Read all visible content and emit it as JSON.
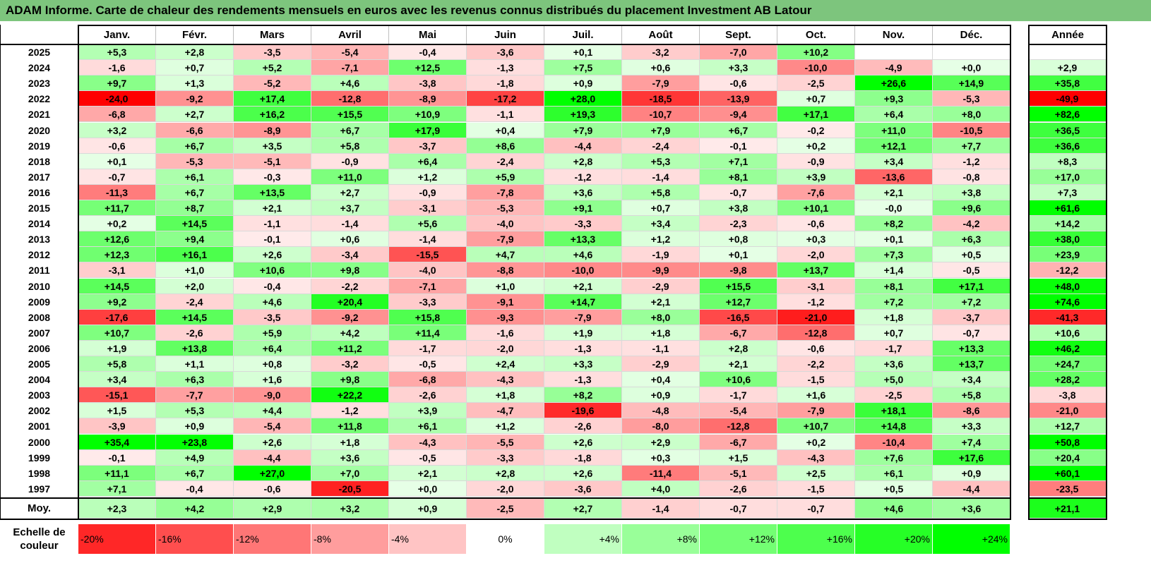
{
  "title": "ADAM Informe. Carte de chaleur des rendements mensuels en euros avec les revenus connus distribués du placement Investment AB Latour",
  "chart_data": {
    "type": "heatmap",
    "months": [
      "Janv.",
      "Févr.",
      "Mars",
      "Avril",
      "Mai",
      "Juin",
      "Juil.",
      "Août",
      "Sept.",
      "Oct.",
      "Nov.",
      "Déc."
    ],
    "year_header": "Année",
    "rows": [
      {
        "year": "2025",
        "values": [
          "+5,3",
          "+2,8",
          "-3,5",
          "-5,4",
          "-0,4",
          "-3,6",
          "+0,1",
          "-3,2",
          "-7,0",
          "+10,2",
          "",
          ""
        ],
        "annual": ""
      },
      {
        "year": "2024",
        "values": [
          "-1,6",
          "+0,7",
          "+5,2",
          "-7,1",
          "+12,5",
          "-1,3",
          "+7,5",
          "+0,6",
          "+3,3",
          "-10,0",
          "-4,9",
          "+0,0"
        ],
        "annual": "+2,9"
      },
      {
        "year": "2023",
        "values": [
          "+9,7",
          "+1,3",
          "-5,2",
          "+4,6",
          "-3,8",
          "-1,8",
          "+0,9",
          "-7,9",
          "-0,6",
          "-2,5",
          "+26,6",
          "+14,9"
        ],
        "annual": "+35,8"
      },
      {
        "year": "2022",
        "values": [
          "-24,0",
          "-9,2",
          "+17,4",
          "-12,8",
          "-8,9",
          "-17,2",
          "+28,0",
          "-18,5",
          "-13,9",
          "+0,7",
          "+9,3",
          "-5,3"
        ],
        "annual": "-49,9"
      },
      {
        "year": "2021",
        "values": [
          "-6,8",
          "+2,7",
          "+16,2",
          "+15,5",
          "+10,9",
          "-1,1",
          "+19,3",
          "-10,7",
          "-9,4",
          "+17,1",
          "+6,4",
          "+8,0"
        ],
        "annual": "+82,6"
      },
      {
        "year": "2020",
        "values": [
          "+3,2",
          "-6,6",
          "-8,9",
          "+6,7",
          "+17,9",
          "+0,4",
          "+7,9",
          "+7,9",
          "+6,7",
          "-0,2",
          "+11,0",
          "-10,5"
        ],
        "annual": "+36,5"
      },
      {
        "year": "2019",
        "values": [
          "-0,6",
          "+6,7",
          "+3,5",
          "+5,8",
          "-3,7",
          "+8,6",
          "-4,4",
          "-2,4",
          "-0,1",
          "+0,2",
          "+12,1",
          "+7,7"
        ],
        "annual": "+36,6"
      },
      {
        "year": "2018",
        "values": [
          "+0,1",
          "-5,3",
          "-5,1",
          "-0,9",
          "+6,4",
          "-2,4",
          "+2,8",
          "+5,3",
          "+7,1",
          "-0,9",
          "+3,4",
          "-1,2"
        ],
        "annual": "+8,3"
      },
      {
        "year": "2017",
        "values": [
          "-0,7",
          "+6,1",
          "-0,3",
          "+11,0",
          "+1,2",
          "+5,9",
          "-1,2",
          "-1,4",
          "+8,1",
          "+3,9",
          "-13,6",
          "-0,8"
        ],
        "annual": "+17,0"
      },
      {
        "year": "2016",
        "values": [
          "-11,3",
          "+6,7",
          "+13,5",
          "+2,7",
          "-0,9",
          "-7,8",
          "+3,6",
          "+5,8",
          "-0,7",
          "-7,6",
          "+2,1",
          "+3,8"
        ],
        "annual": "+7,3"
      },
      {
        "year": "2015",
        "values": [
          "+11,7",
          "+8,7",
          "+2,1",
          "+3,7",
          "-3,1",
          "-5,3",
          "+9,1",
          "+0,7",
          "+3,8",
          "+10,1",
          "-0,0",
          "+9,6"
        ],
        "annual": "+61,6"
      },
      {
        "year": "2014",
        "values": [
          "+0,2",
          "+14,5",
          "-1,1",
          "-1,4",
          "+5,6",
          "-4,0",
          "-3,3",
          "+3,4",
          "-2,3",
          "-0,6",
          "+8,2",
          "-4,2"
        ],
        "annual": "+14,2"
      },
      {
        "year": "2013",
        "values": [
          "+12,6",
          "+9,4",
          "-0,1",
          "+0,6",
          "-1,4",
          "-7,9",
          "+13,3",
          "+1,2",
          "+0,8",
          "+0,3",
          "+0,1",
          "+6,3"
        ],
        "annual": "+38,0"
      },
      {
        "year": "2012",
        "values": [
          "+12,3",
          "+16,1",
          "+2,6",
          "-3,4",
          "-15,5",
          "+4,7",
          "+4,6",
          "-1,9",
          "+0,1",
          "-2,0",
          "+7,3",
          "+0,5"
        ],
        "annual": "+23,9"
      },
      {
        "year": "2011",
        "values": [
          "-3,1",
          "+1,0",
          "+10,6",
          "+9,8",
          "-4,0",
          "-8,8",
          "-10,0",
          "-9,9",
          "-9,8",
          "+13,7",
          "+1,4",
          "-0,5"
        ],
        "annual": "-12,2"
      },
      {
        "year": "2010",
        "values": [
          "+14,5",
          "+2,0",
          "-0,4",
          "-2,2",
          "-7,1",
          "+1,0",
          "+2,1",
          "-2,9",
          "+15,5",
          "-3,1",
          "+8,1",
          "+17,1"
        ],
        "annual": "+48,0"
      },
      {
        "year": "2009",
        "values": [
          "+9,2",
          "-2,4",
          "+4,6",
          "+20,4",
          "-3,3",
          "-9,1",
          "+14,7",
          "+2,1",
          "+12,7",
          "-1,2",
          "+7,2",
          "+7,2"
        ],
        "annual": "+74,6"
      },
      {
        "year": "2008",
        "values": [
          "-17,6",
          "+14,5",
          "-3,5",
          "-9,2",
          "+15,8",
          "-9,3",
          "-7,9",
          "+8,0",
          "-16,5",
          "-21,0",
          "+1,8",
          "-3,7"
        ],
        "annual": "-41,3"
      },
      {
        "year": "2007",
        "values": [
          "+10,7",
          "-2,6",
          "+5,9",
          "+4,2",
          "+11,4",
          "-1,6",
          "+1,9",
          "+1,8",
          "-6,7",
          "-12,8",
          "+0,7",
          "-0,7"
        ],
        "annual": "+10,6"
      },
      {
        "year": "2006",
        "values": [
          "+1,9",
          "+13,8",
          "+6,4",
          "+11,2",
          "-1,7",
          "-2,0",
          "-1,3",
          "-1,1",
          "+2,8",
          "-0,6",
          "-1,7",
          "+13,3"
        ],
        "annual": "+46,2"
      },
      {
        "year": "2005",
        "values": [
          "+5,8",
          "+1,1",
          "+0,8",
          "-3,2",
          "-0,5",
          "+2,4",
          "+3,3",
          "-2,9",
          "+2,1",
          "-2,2",
          "+3,6",
          "+13,7"
        ],
        "annual": "+24,7"
      },
      {
        "year": "2004",
        "values": [
          "+3,4",
          "+6,3",
          "+1,6",
          "+9,8",
          "-6,8",
          "-4,3",
          "-1,3",
          "+0,4",
          "+10,6",
          "-1,5",
          "+5,0",
          "+3,4"
        ],
        "annual": "+28,2"
      },
      {
        "year": "2003",
        "values": [
          "-15,1",
          "-7,7",
          "-9,0",
          "+22,2",
          "-2,6",
          "+1,8",
          "+8,2",
          "+0,9",
          "-1,7",
          "+1,6",
          "-2,5",
          "+5,8"
        ],
        "annual": "-3,8"
      },
      {
        "year": "2002",
        "values": [
          "+1,5",
          "+5,3",
          "+4,4",
          "-1,2",
          "+3,9",
          "-4,7",
          "-19,6",
          "-4,8",
          "-5,4",
          "-7,9",
          "+18,1",
          "-8,6"
        ],
        "annual": "-21,0"
      },
      {
        "year": "2001",
        "values": [
          "-3,9",
          "+0,9",
          "-5,4",
          "+11,8",
          "+6,1",
          "+1,2",
          "-2,6",
          "-8,0",
          "-12,8",
          "+10,7",
          "+14,8",
          "+3,3"
        ],
        "annual": "+12,7"
      },
      {
        "year": "2000",
        "values": [
          "+35,4",
          "+23,8",
          "+2,6",
          "+1,8",
          "-4,3",
          "-5,5",
          "+2,6",
          "+2,9",
          "-6,7",
          "+0,2",
          "-10,4",
          "+7,4"
        ],
        "annual": "+50,8"
      },
      {
        "year": "1999",
        "values": [
          "-0,1",
          "+4,9",
          "-4,4",
          "+3,6",
          "-0,5",
          "-3,3",
          "-1,8",
          "+0,3",
          "+1,5",
          "-4,3",
          "+7,6",
          "+17,6"
        ],
        "annual": "+20,4"
      },
      {
        "year": "1998",
        "values": [
          "+11,1",
          "+6,7",
          "+27,0",
          "+7,0",
          "+2,1",
          "+2,8",
          "+2,6",
          "-11,4",
          "-5,1",
          "+2,5",
          "+6,1",
          "+0,9"
        ],
        "annual": "+60,1"
      },
      {
        "year": "1997",
        "values": [
          "+7,1",
          "-0,4",
          "-0,6",
          "-20,5",
          "+0,0",
          "-2,0",
          "-3,6",
          "+4,0",
          "-2,6",
          "-1,5",
          "+0,5",
          "-4,4"
        ],
        "annual": "-23,5"
      }
    ],
    "average": {
      "label": "Moy.",
      "values": [
        "+2,3",
        "+4,2",
        "+2,9",
        "+3,2",
        "+0,9",
        "-2,5",
        "+2,7",
        "-1,4",
        "-0,7",
        "-0,7",
        "+4,6",
        "+3,6"
      ],
      "annual": "+21,1"
    },
    "scale": {
      "label": "Echelle de couleur",
      "steps": [
        "-20%",
        "-16%",
        "-12%",
        "-8%",
        "-4%",
        "0%",
        "+4%",
        "+8%",
        "+12%",
        "+16%",
        "+20%",
        "+24%"
      ]
    },
    "colors": {
      "neg_max": "#ff0000",
      "pos_max": "#00ff00",
      "neutral": "#ffffff",
      "title_bg": "#7dc57d"
    }
  }
}
